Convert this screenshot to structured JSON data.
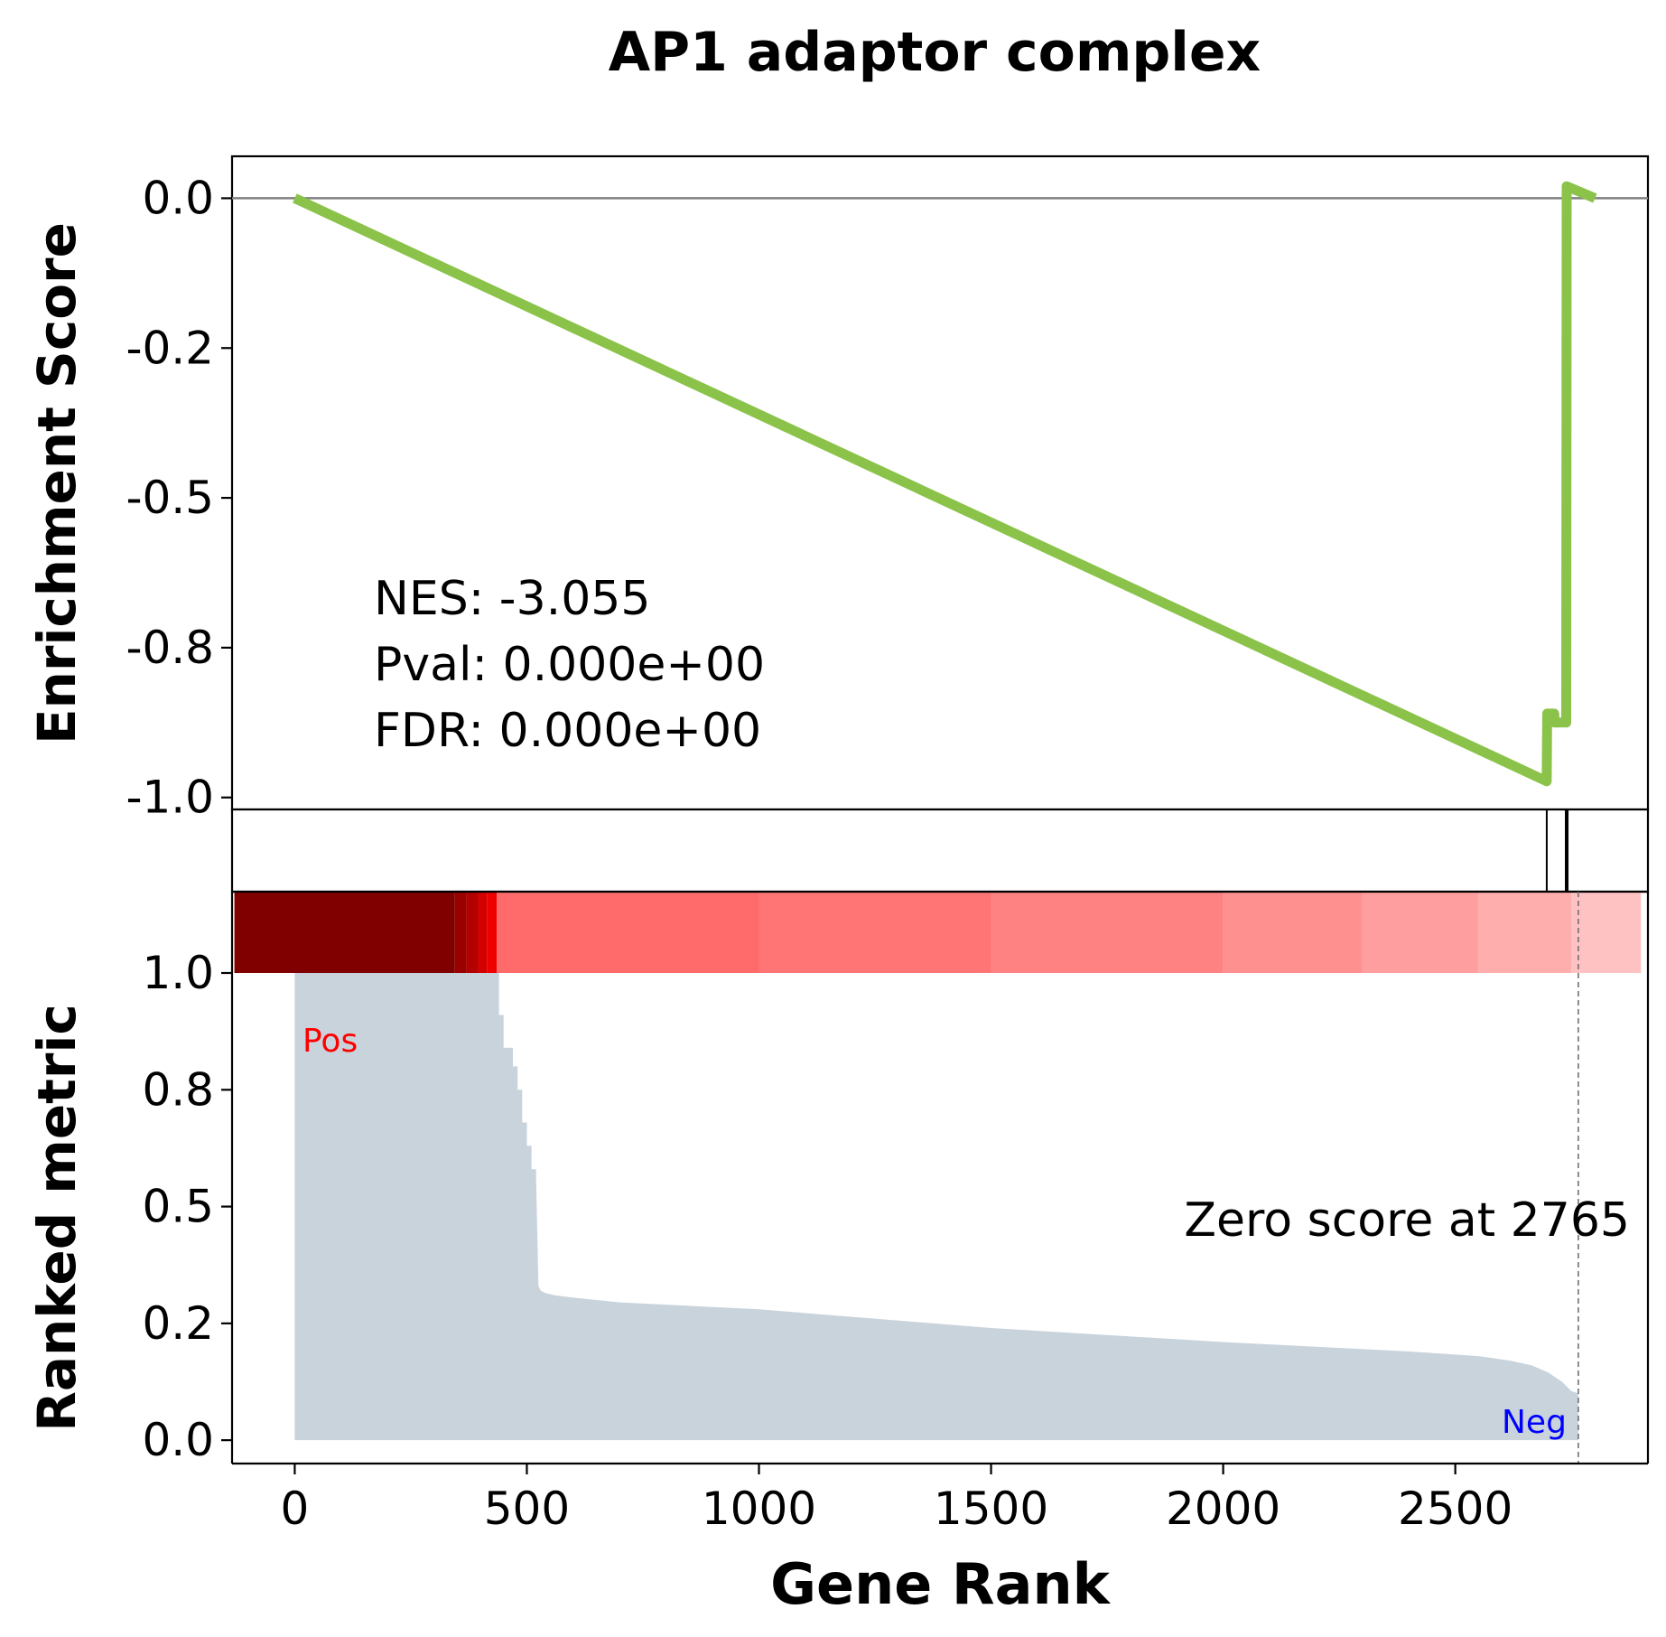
{
  "chart_data": {
    "type": "line",
    "title": "AP1 adaptor complex",
    "xlabel": "Gene Rank",
    "es_panel": {
      "ylabel": "Enrichment Score",
      "ytick_labels": [
        "0.0",
        "-0.2",
        "-0.5",
        "-0.8",
        "-1.0"
      ],
      "ytick_values": [
        0.0,
        -0.25,
        -0.5,
        -0.75,
        -1.0
      ],
      "ylim": [
        -1.02,
        0.07
      ],
      "zero_line": 0.0,
      "line_color": "#8bc34a",
      "es_curve": {
        "x": [
          0,
          2697,
          2698,
          2713,
          2714,
          2739,
          2740,
          2801
        ],
        "y": [
          0.0,
          -0.973,
          -0.86,
          -0.86,
          -0.875,
          -0.875,
          0.02,
          0.0
        ]
      },
      "stats": [
        {
          "label": "NES",
          "text": "NES: -3.055"
        },
        {
          "label": "Pval",
          "text": "Pval: 0.000e+00"
        },
        {
          "label": "FDR",
          "text": "FDR: 0.000e+00"
        }
      ]
    },
    "hits_panel": {
      "hit_ranks": [
        2697,
        2740
      ]
    },
    "heatmap": {
      "x_range": [
        -130,
        2900
      ],
      "segments": [
        {
          "x0": -130,
          "x1": 345,
          "color": "#800000"
        },
        {
          "x0": 345,
          "x1": 370,
          "color": "#990000"
        },
        {
          "x0": 370,
          "x1": 395,
          "color": "#b30000"
        },
        {
          "x0": 395,
          "x1": 415,
          "color": "#d40000"
        },
        {
          "x0": 415,
          "x1": 435,
          "color": "#ee0000"
        },
        {
          "x0": 435,
          "x1": 1000,
          "color": "#ff6b6b"
        },
        {
          "x0": 1000,
          "x1": 1500,
          "color": "#ff7474"
        },
        {
          "x0": 1500,
          "x1": 2000,
          "color": "#ff8282"
        },
        {
          "x0": 2000,
          "x1": 2300,
          "color": "#ff9090"
        },
        {
          "x0": 2300,
          "x1": 2550,
          "color": "#ff9e9e"
        },
        {
          "x0": 2550,
          "x1": 2750,
          "color": "#ffaeae"
        },
        {
          "x0": 2750,
          "x1": 2900,
          "color": "#ffc2c2"
        }
      ]
    },
    "metric_panel": {
      "ylabel": "Ranked metric",
      "ytick_labels": [
        "0.0",
        "0.2",
        "0.5",
        "0.8",
        "1.0"
      ],
      "ytick_values": [
        0.0,
        0.25,
        0.5,
        0.75,
        1.0
      ],
      "ylim": [
        -0.05,
        1.0
      ],
      "fill_color": "#c9d3dc",
      "metric_curve": {
        "x": [
          0,
          440,
          440,
          450,
          450,
          470,
          470,
          480,
          480,
          490,
          490,
          500,
          500,
          510,
          510,
          520,
          520,
          525,
          530,
          540,
          560,
          600,
          700,
          1000,
          1500,
          2000,
          2200,
          2400,
          2550,
          2620,
          2665,
          2700,
          2730,
          2750,
          2765,
          2765,
          2800
        ],
        "y": [
          1.0,
          1.0,
          0.91,
          0.91,
          0.84,
          0.84,
          0.8,
          0.8,
          0.75,
          0.75,
          0.68,
          0.68,
          0.63,
          0.63,
          0.58,
          0.58,
          0.56,
          0.33,
          0.32,
          0.315,
          0.31,
          0.305,
          0.295,
          0.28,
          0.24,
          0.21,
          0.2,
          0.19,
          0.18,
          0.17,
          0.16,
          0.145,
          0.125,
          0.105,
          0.1,
          0.0,
          0.0
        ]
      },
      "zero_cross_rank": 2765,
      "zero_score_text": "Zero score at 2765",
      "pos_label": "Pos",
      "neg_label": "Neg",
      "pos_color": "#ff0000",
      "neg_color": "#0000ff"
    },
    "xlim": [
      -135,
      2915
    ],
    "xtick_values": [
      0,
      500,
      1000,
      1500,
      2000,
      2500
    ],
    "xtick_labels": [
      "0",
      "500",
      "1000",
      "1500",
      "2000",
      "2500"
    ]
  }
}
